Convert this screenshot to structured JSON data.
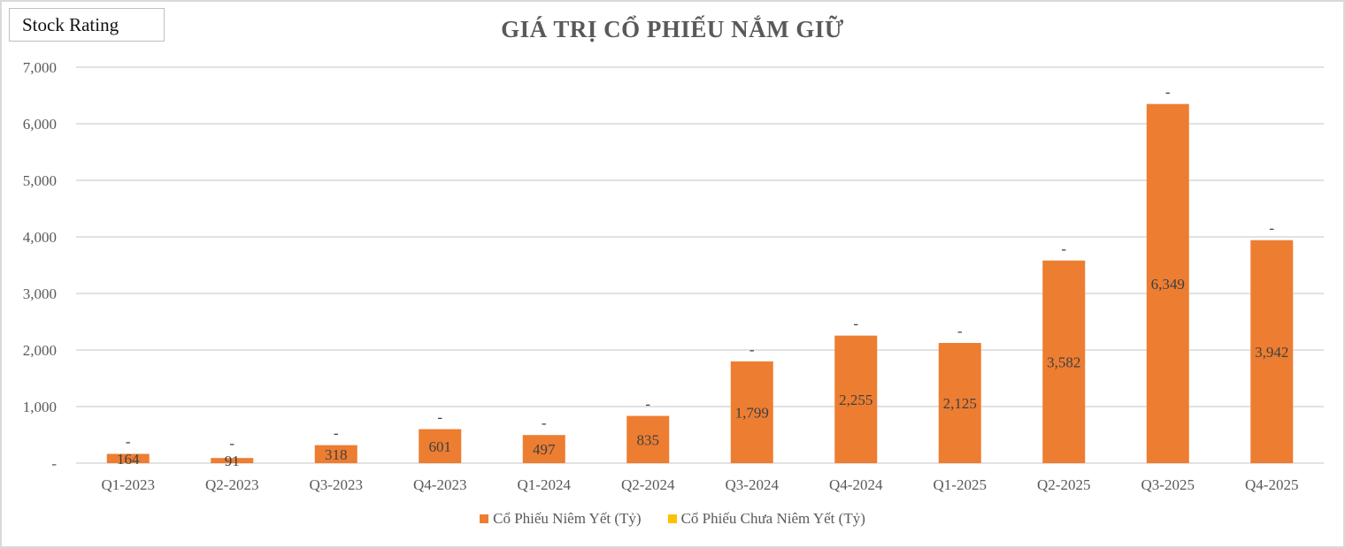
{
  "badge": "Stock Rating",
  "chart_data": {
    "type": "bar",
    "stacked": true,
    "title": "GIÁ TRỊ CỔ PHIẾU NẮM GIỮ",
    "categories": [
      "Q1-2023",
      "Q2-2023",
      "Q3-2023",
      "Q4-2023",
      "Q1-2024",
      "Q2-2024",
      "Q3-2024",
      "Q4-2024",
      "Q1-2025",
      "Q2-2025",
      "Q3-2025",
      "Q4-2025"
    ],
    "series": [
      {
        "name": "Cổ Phiếu Niêm Yết (Tỷ)",
        "color": "#ED7D31",
        "values": [
          164,
          91,
          318,
          601,
          497,
          835,
          1799,
          2255,
          2125,
          3582,
          6349,
          3942
        ],
        "labels": [
          "164",
          "91",
          "318",
          "601",
          "497",
          "835",
          "1,799",
          "2,255",
          "2,125",
          "3,582",
          "6,349",
          "3,942"
        ]
      },
      {
        "name": "Cổ Phiếu Chưa Niêm Yết (Tỷ)",
        "color": "#FFC000",
        "values": [
          0,
          0,
          0,
          0,
          0,
          0,
          0,
          0,
          0,
          0,
          0,
          0
        ],
        "labels": [
          "-",
          "-",
          "-",
          "-",
          "-",
          "-",
          "-",
          "-",
          "-",
          "-",
          "-",
          "-"
        ]
      }
    ],
    "ylim": [
      0,
      7000
    ],
    "yticks": [
      0,
      1000,
      2000,
      3000,
      4000,
      5000,
      6000,
      7000
    ],
    "ytick_labels": [
      "-",
      "1,000",
      "2,000",
      "3,000",
      "4,000",
      "5,000",
      "6,000",
      "7,000"
    ],
    "grid": true,
    "legend_position": "bottom"
  }
}
